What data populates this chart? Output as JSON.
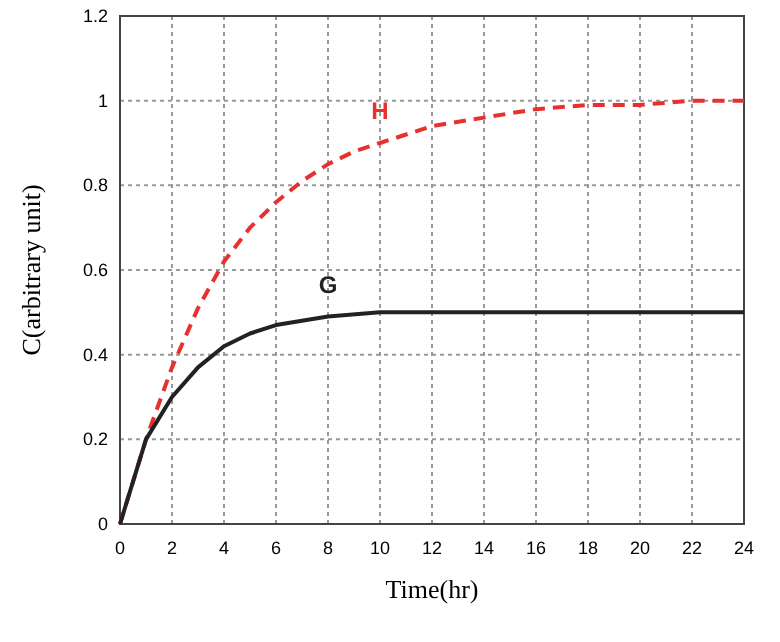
{
  "chart_data": {
    "type": "line",
    "xlabel": "Time(hr)",
    "ylabel": "C(arbitrary unit)",
    "xlim": [
      0,
      24
    ],
    "xticks": [
      0,
      2,
      4,
      6,
      8,
      10,
      12,
      14,
      16,
      18,
      20,
      22,
      24
    ],
    "ylim": [
      0,
      1.2
    ],
    "yticks": [
      0,
      0.2,
      0.4,
      0.6,
      0.8,
      1,
      1.2
    ],
    "grid": true,
    "marker": "none",
    "series": [
      {
        "name": "H",
        "color": "#e8312f",
        "line_style": "dashed",
        "x": [
          0,
          1,
          2,
          3,
          4,
          5,
          6,
          7,
          8,
          9,
          10,
          12,
          14,
          16,
          18,
          20,
          22,
          24
        ],
        "values": [
          0,
          0.2,
          0.37,
          0.51,
          0.62,
          0.7,
          0.76,
          0.81,
          0.85,
          0.88,
          0.9,
          0.94,
          0.96,
          0.98,
          0.99,
          0.99,
          1,
          1
        ]
      },
      {
        "name": "G",
        "color": "#222222",
        "line_style": "solid",
        "x": [
          0,
          1,
          2,
          3,
          4,
          5,
          6,
          7,
          8,
          10,
          12,
          16,
          20,
          24
        ],
        "values": [
          0,
          0.2,
          0.3,
          0.37,
          0.42,
          0.45,
          0.47,
          0.48,
          0.49,
          0.5,
          0.5,
          0.5,
          0.5,
          0.5
        ]
      }
    ]
  }
}
